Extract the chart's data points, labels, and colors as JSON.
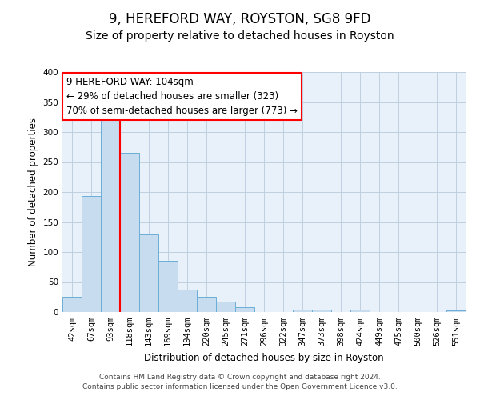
{
  "title": "9, HEREFORD WAY, ROYSTON, SG8 9FD",
  "subtitle": "Size of property relative to detached houses in Royston",
  "xlabel": "Distribution of detached houses by size in Royston",
  "ylabel": "Number of detached properties",
  "bin_labels": [
    "42sqm",
    "67sqm",
    "93sqm",
    "118sqm",
    "143sqm",
    "169sqm",
    "194sqm",
    "220sqm",
    "245sqm",
    "271sqm",
    "296sqm",
    "322sqm",
    "347sqm",
    "373sqm",
    "398sqm",
    "424sqm",
    "449sqm",
    "475sqm",
    "500sqm",
    "526sqm",
    "551sqm"
  ],
  "bar_values": [
    25,
    193,
    330,
    265,
    130,
    86,
    38,
    26,
    17,
    8,
    0,
    0,
    4,
    4,
    0,
    4,
    0,
    0,
    0,
    0,
    3
  ],
  "bar_color": "#c8dcf0",
  "bar_edge_color": "#6aaed6",
  "redline_label": "9 HEREFORD WAY: 104sqm",
  "annotation1": "← 29% of detached houses are smaller (323)",
  "annotation2": "70% of semi-detached houses are larger (773) →",
  "annotation_box_color": "white",
  "annotation_box_edge_color": "red",
  "ylim": [
    0,
    400
  ],
  "yticks": [
    0,
    50,
    100,
    150,
    200,
    250,
    300,
    350,
    400
  ],
  "footnote1": "Contains HM Land Registry data © Crown copyright and database right 2024.",
  "footnote2": "Contains public sector information licensed under the Open Government Licence v3.0.",
  "background_color": "#e8f0fa",
  "grid_color": "#c0cfe0",
  "title_fontsize": 12,
  "subtitle_fontsize": 10,
  "axis_label_fontsize": 8.5,
  "tick_fontsize": 7.5,
  "annotation_fontsize": 8.5,
  "footnote_fontsize": 6.5
}
